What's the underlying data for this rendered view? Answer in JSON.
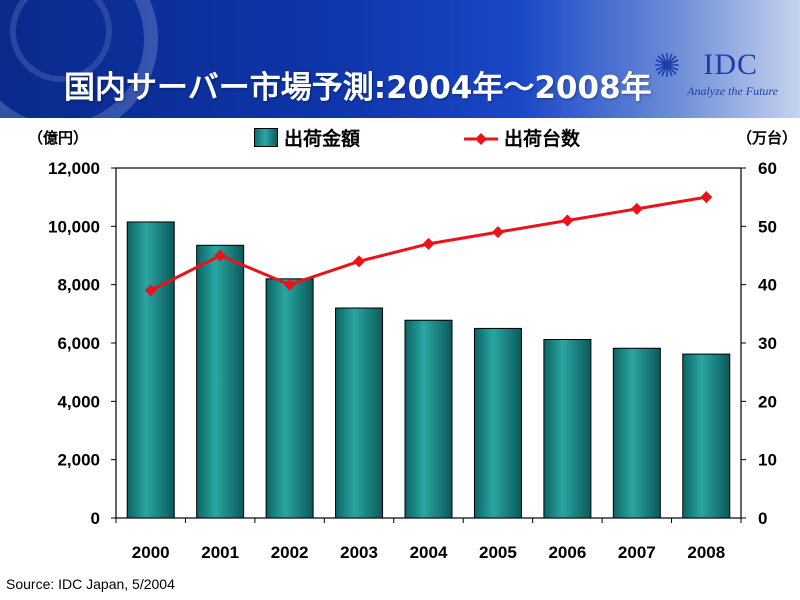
{
  "header": {
    "title": "国内サーバー市場予測:2004年～2008年",
    "logo_text": "IDC",
    "logo_tagline": "Analyze the Future"
  },
  "units": {
    "left": "（億円）",
    "right": "（万台）"
  },
  "legend": {
    "bar": "出荷金額",
    "line": "出荷台数"
  },
  "source": "Source: IDC Japan, 5/2004",
  "colors": {
    "bar": "#1f8f8c",
    "line": "#e8141a",
    "header": "#0e34a8"
  },
  "chart_data": {
    "type": "bar",
    "categories": [
      "2000",
      "2001",
      "2002",
      "2003",
      "2004",
      "2005",
      "2006",
      "2007",
      "2008"
    ],
    "series": [
      {
        "name": "出荷金額",
        "type": "bar",
        "axis": "left",
        "values": [
          10150,
          9350,
          8200,
          7200,
          6780,
          6500,
          6120,
          5820,
          5620
        ]
      },
      {
        "name": "出荷台数",
        "type": "line",
        "axis": "right",
        "values": [
          39,
          45,
          40,
          44,
          47,
          49,
          51,
          53,
          55
        ]
      }
    ],
    "y_left": {
      "ylim": [
        0,
        12000
      ],
      "ticks": [
        "0",
        "2,000",
        "4,000",
        "6,000",
        "8,000",
        "10,000",
        "12,000"
      ]
    },
    "y_right": {
      "ylim": [
        0,
        60
      ],
      "ticks": [
        "0",
        "10",
        "20",
        "30",
        "40",
        "50",
        "60"
      ]
    },
    "legend_position": "top-center",
    "grid": false
  }
}
